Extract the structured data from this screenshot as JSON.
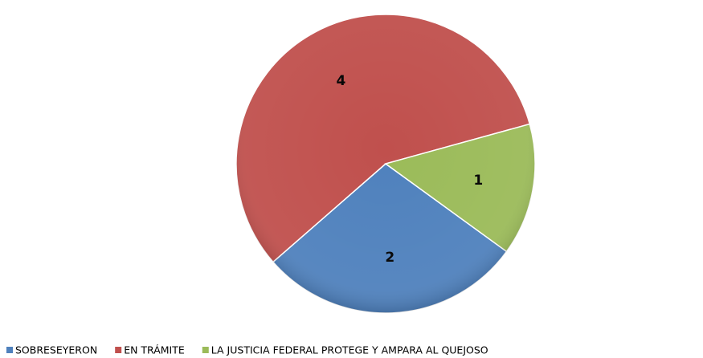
{
  "chart_data": {
    "type": "pie",
    "categories": [
      "SOBRESEYERON",
      "EN TRÁMITE",
      "LA JUSTICIA FEDERAL PROTEGE Y AMPARA AL QUEJOSO"
    ],
    "values": [
      2,
      4,
      1
    ],
    "colors": [
      "#4f81bd",
      "#c0504d",
      "#9bbb59"
    ],
    "legend": "bottom"
  }
}
